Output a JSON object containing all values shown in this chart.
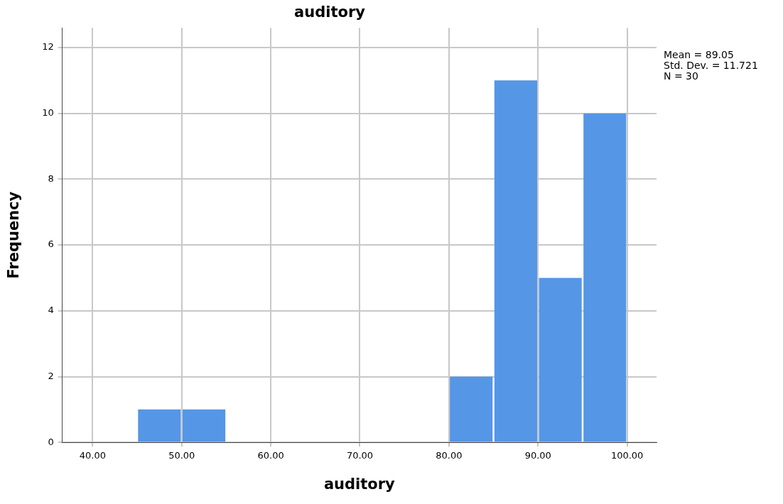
{
  "chart_data": {
    "type": "histogram",
    "title": "auditory",
    "xlabel": "auditory",
    "ylabel": "Frequency",
    "bins": [
      45,
      50,
      55,
      60,
      65,
      70,
      75,
      80,
      85,
      90,
      95,
      100
    ],
    "values": [
      1,
      1,
      0,
      0,
      0,
      0,
      0,
      2,
      11,
      5,
      10
    ],
    "color": "#5596e6",
    "xlim": [
      36.6,
      103.3
    ],
    "xticks": [
      {
        "value": 40,
        "label": "40.00"
      },
      {
        "value": 50,
        "label": "50.00"
      },
      {
        "value": 60,
        "label": "60.00"
      },
      {
        "value": 70,
        "label": "70.00"
      },
      {
        "value": 80,
        "label": "80.00"
      },
      {
        "value": 90,
        "label": "90.00"
      },
      {
        "value": 100,
        "label": "100.00"
      }
    ],
    "ylim": [
      0,
      12.6
    ],
    "yticks": [
      0,
      2,
      4,
      6,
      8,
      10,
      12
    ],
    "grid": true,
    "annotations": [
      "Mean = 89.05",
      "Std. Dev. = 11.721",
      "N = 30"
    ]
  }
}
